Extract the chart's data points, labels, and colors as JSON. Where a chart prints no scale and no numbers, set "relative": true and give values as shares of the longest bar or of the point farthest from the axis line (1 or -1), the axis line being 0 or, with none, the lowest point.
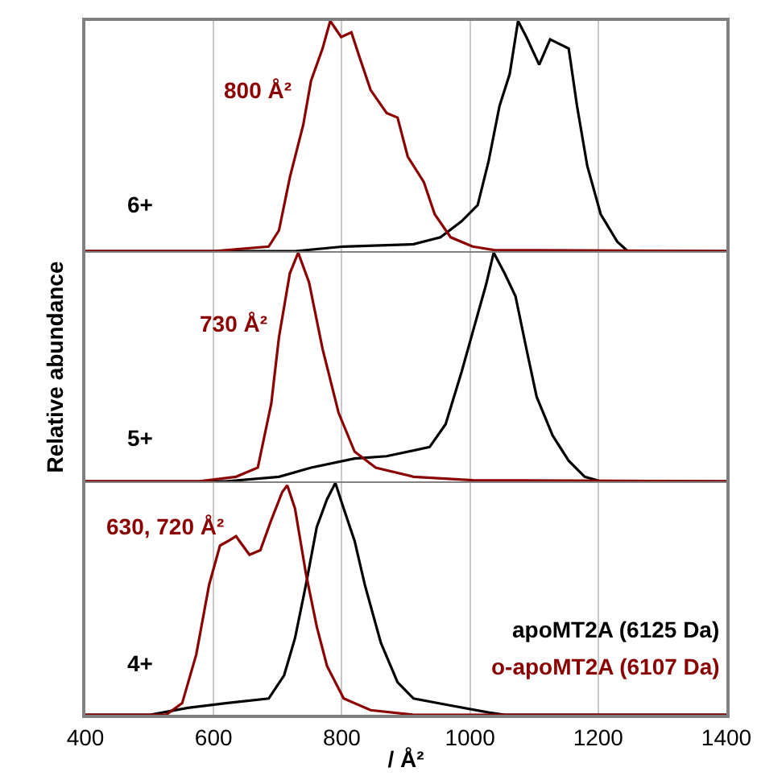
{
  "chart_data": [
    {
      "type": "line",
      "relative": true,
      "xlim": [
        400,
        1400
      ],
      "xticks": [
        400,
        600,
        800,
        1000,
        1200,
        1400
      ],
      "grid": "x",
      "tick_labels": false,
      "legend": false,
      "annotations": [
        "800 Å²",
        "6+"
      ],
      "series": [
        {
          "color": "#000000",
          "x": [
            400,
            727,
            803,
            912,
            954,
            987,
            1012,
            1029,
            1046,
            1062,
            1075,
            1088,
            1108,
            1125,
            1154,
            1167,
            1183,
            1204,
            1230,
            1246,
            1400
          ],
          "values": [
            0,
            0,
            0.02,
            0.03,
            0.06,
            0.13,
            0.2,
            0.39,
            0.63,
            0.77,
            1,
            0.93,
            0.81,
            0.92,
            0.88,
            0.63,
            0.37,
            0.16,
            0.04,
            0,
            0
          ]
        },
        {
          "color": "#8b0000",
          "x": [
            400,
            600,
            686,
            702,
            719,
            740,
            752,
            770,
            782,
            799,
            815,
            828,
            845,
            870,
            887,
            903,
            928,
            945,
            970,
            1004,
            1037,
            1400
          ],
          "values": [
            0,
            0,
            0.02,
            0.09,
            0.32,
            0.55,
            0.74,
            0.88,
            1,
            0.93,
            0.95,
            0.84,
            0.7,
            0.6,
            0.58,
            0.41,
            0.3,
            0.16,
            0.06,
            0.02,
            0.005,
            0
          ]
        }
      ]
    },
    {
      "type": "line",
      "relative": true,
      "xlim": [
        400,
        1400
      ],
      "xticks": [
        400,
        600,
        800,
        1000,
        1200,
        1400
      ],
      "grid": "x",
      "tick_labels": false,
      "legend": false,
      "ylabel": "Relative abundance",
      "annotations": [
        "730 Å²",
        "5+"
      ],
      "series": [
        {
          "color": "#000000",
          "x": [
            400,
            619,
            702,
            752,
            820,
            870,
            937,
            962,
            987,
            1004,
            1025,
            1037,
            1054,
            1071,
            1088,
            1104,
            1129,
            1154,
            1179,
            1204,
            1400
          ],
          "values": [
            0,
            0,
            0.02,
            0.06,
            0.1,
            0.11,
            0.15,
            0.25,
            0.48,
            0.65,
            0.86,
            1,
            0.91,
            0.81,
            0.58,
            0.37,
            0.2,
            0.09,
            0.02,
            0,
            0
          ]
        },
        {
          "color": "#8b0000",
          "x": [
            400,
            577,
            635,
            669,
            690,
            702,
            719,
            732,
            749,
            770,
            795,
            820,
            853,
            912,
            1004,
            1400
          ],
          "values": [
            0,
            0,
            0.02,
            0.06,
            0.34,
            0.63,
            0.91,
            1,
            0.87,
            0.58,
            0.3,
            0.13,
            0.06,
            0.02,
            0.005,
            0
          ]
        }
      ]
    },
    {
      "type": "line",
      "relative": true,
      "xlim": [
        400,
        1400
      ],
      "xticks": [
        400,
        600,
        800,
        1000,
        1200,
        1400
      ],
      "grid": "x",
      "tick_labels": "x",
      "legend": "bottom right",
      "xlabel": "/ Å²",
      "annotations": [
        "630, 720 Å²",
        "4+"
      ],
      "series": [
        {
          "name": "apoMT2A (6125 Da)",
          "color": "#000000",
          "x": [
            400,
            501,
            560,
            619,
            686,
            710,
            727,
            744,
            761,
            777,
            790,
            803,
            820,
            836,
            861,
            887,
            912,
            970,
            1029,
            1054,
            1400
          ],
          "values": [
            0,
            0,
            0.03,
            0.05,
            0.07,
            0.17,
            0.33,
            0.56,
            0.81,
            0.93,
            1,
            0.89,
            0.75,
            0.56,
            0.31,
            0.14,
            0.07,
            0.04,
            0.01,
            0,
            0
          ]
        },
        {
          "name": "o-apoMT2A (6107 Da)",
          "color": "#8b0000",
          "x": [
            400,
            526,
            551,
            573,
            593,
            610,
            623,
            635,
            656,
            673,
            690,
            707,
            715,
            727,
            744,
            761,
            777,
            803,
            845,
            912,
            1400
          ],
          "values": [
            0,
            0,
            0.05,
            0.26,
            0.56,
            0.73,
            0.75,
            0.77,
            0.69,
            0.71,
            0.84,
            0.96,
            0.99,
            0.89,
            0.61,
            0.38,
            0.21,
            0.07,
            0.02,
            0,
            0
          ]
        }
      ]
    }
  ]
}
